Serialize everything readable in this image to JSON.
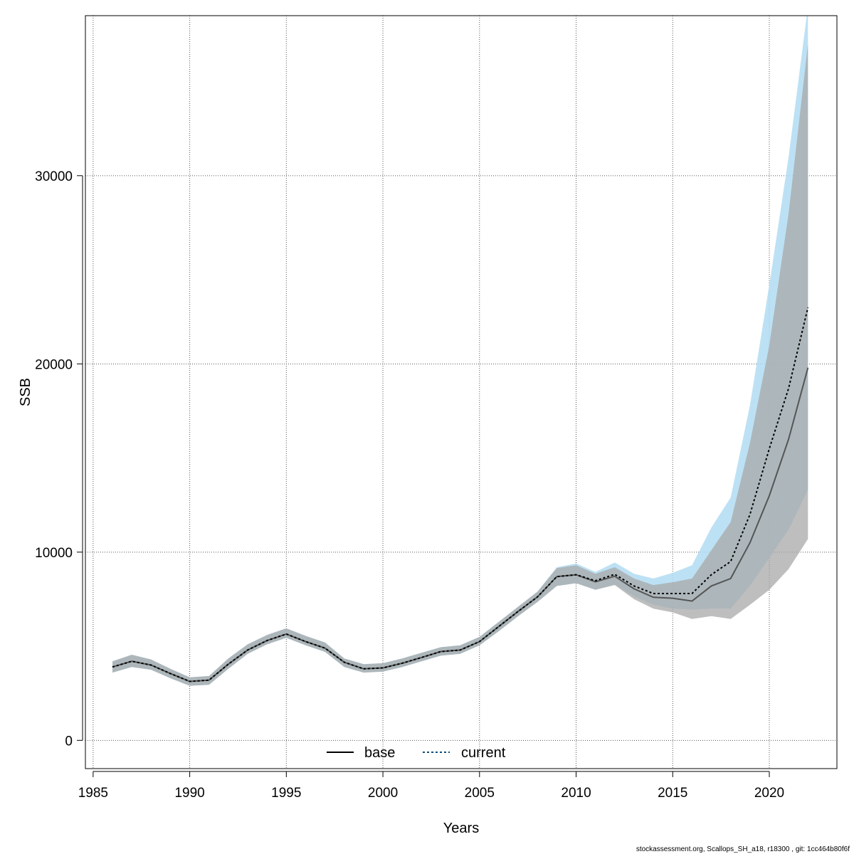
{
  "chart_data": {
    "type": "line",
    "xlabel": "Years",
    "ylabel": "SSB",
    "xlim": [
      1984.6,
      2023.5
    ],
    "ylim": [
      -1500,
      38500
    ],
    "x_ticks": [
      1985,
      1990,
      1995,
      2000,
      2005,
      2010,
      2015,
      2020
    ],
    "y_ticks": [
      0,
      10000,
      20000,
      30000
    ],
    "grid": true,
    "legend_position": "bottom-center",
    "x": [
      1986,
      1987,
      1988,
      1989,
      1990,
      1991,
      1992,
      1993,
      1994,
      1995,
      1996,
      1997,
      1998,
      1999,
      2000,
      2001,
      2002,
      2003,
      2004,
      2005,
      2006,
      2007,
      2008,
      2009,
      2010,
      2011,
      2012,
      2013,
      2014,
      2015,
      2016,
      2017,
      2018,
      2019,
      2020,
      2021,
      2022
    ],
    "series": [
      {
        "name": "base",
        "color": "#000000",
        "line_style": "solid",
        "band_color": "#a8a8a8",
        "values": [
          3900,
          4200,
          4000,
          3550,
          3130,
          3200,
          4050,
          4800,
          5300,
          5650,
          5250,
          4900,
          4150,
          3800,
          3850,
          4100,
          4400,
          4720,
          4800,
          5250,
          6050,
          6850,
          7620,
          8700,
          8800,
          8420,
          8720,
          8050,
          7600,
          7550,
          7400,
          8200,
          8600,
          10500,
          13000,
          16000,
          19800
        ],
        "lower": [
          3600,
          3900,
          3750,
          3300,
          2900,
          2950,
          3800,
          4600,
          5100,
          5450,
          5050,
          4700,
          3900,
          3600,
          3650,
          3900,
          4200,
          4500,
          4600,
          5050,
          5800,
          6600,
          7350,
          8200,
          8350,
          8000,
          8250,
          7500,
          7000,
          6800,
          6450,
          6600,
          6450,
          7200,
          8000,
          9100,
          10700
        ],
        "upper": [
          4200,
          4550,
          4300,
          3800,
          3350,
          3420,
          4350,
          5100,
          5600,
          5950,
          5550,
          5200,
          4350,
          4050,
          4100,
          4350,
          4650,
          4950,
          5050,
          5500,
          6300,
          7100,
          7900,
          9150,
          9300,
          8850,
          9200,
          8600,
          8250,
          8400,
          8600,
          10100,
          11600,
          15800,
          21000,
          28000,
          37000
        ]
      },
      {
        "name": "current",
        "color": "#0b4f7a",
        "line_style": "dashed",
        "band_color": "#b2dcf2",
        "values": [
          3900,
          4200,
          4000,
          3550,
          3130,
          3200,
          4050,
          4800,
          5300,
          5650,
          5250,
          4900,
          4150,
          3800,
          3850,
          4100,
          4400,
          4720,
          4800,
          5250,
          6050,
          6850,
          7620,
          8700,
          8800,
          8480,
          8820,
          8200,
          7800,
          7800,
          7800,
          8800,
          9500,
          12000,
          15500,
          18700,
          23000
        ],
        "lower": [
          3600,
          3900,
          3750,
          3300,
          2900,
          2950,
          3800,
          4600,
          5100,
          5450,
          5050,
          4700,
          3900,
          3600,
          3650,
          3900,
          4200,
          4500,
          4600,
          5050,
          5800,
          6600,
          7350,
          8200,
          8350,
          8000,
          8280,
          7650,
          7200,
          7000,
          6950,
          7000,
          7000,
          8200,
          9700,
          11200,
          13300
        ],
        "upper": [
          4200,
          4550,
          4300,
          3800,
          3350,
          3420,
          4350,
          5100,
          5600,
          5950,
          5550,
          5200,
          4350,
          4050,
          4100,
          4350,
          4650,
          4950,
          5050,
          5500,
          6300,
          7100,
          7900,
          9200,
          9400,
          8950,
          9450,
          8850,
          8600,
          8900,
          9300,
          11300,
          12900,
          17800,
          24200,
          31000,
          39000
        ]
      }
    ]
  },
  "footer_text": "stockassessment.org, Scallops_SH_a18, r18300 , git: 1cc464b80f6f"
}
